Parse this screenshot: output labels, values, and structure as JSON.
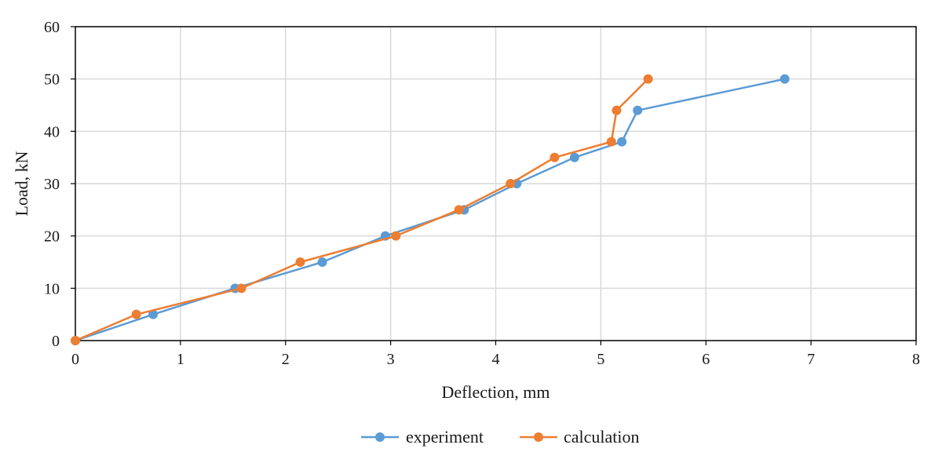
{
  "chart_data": {
    "type": "line",
    "title": "",
    "xlabel": "Deflection, mm",
    "ylabel": "Load, kN",
    "xlim": [
      0,
      8
    ],
    "ylim": [
      0,
      60
    ],
    "xticks": [
      0,
      1,
      2,
      3,
      4,
      5,
      6,
      7,
      8
    ],
    "yticks": [
      0,
      10,
      20,
      30,
      40,
      50,
      60
    ],
    "grid": true,
    "legend_position": "bottom-center",
    "series": [
      {
        "name": "experiment",
        "color": "#5B9BD5",
        "x": [
          0,
          0.74,
          1.52,
          2.35,
          2.95,
          3.7,
          4.2,
          4.75,
          5.2,
          5.35,
          6.75
        ],
        "y": [
          0,
          5,
          10,
          15,
          20,
          25,
          30,
          35,
          38,
          44,
          50
        ]
      },
      {
        "name": "calculation",
        "color": "#ED7D31",
        "x": [
          0,
          0.58,
          1.58,
          2.14,
          3.05,
          3.65,
          4.14,
          4.56,
          5.1,
          5.15,
          5.45
        ],
        "y": [
          0,
          5,
          10,
          15,
          20,
          25,
          30,
          35,
          38,
          44,
          50
        ]
      }
    ]
  }
}
